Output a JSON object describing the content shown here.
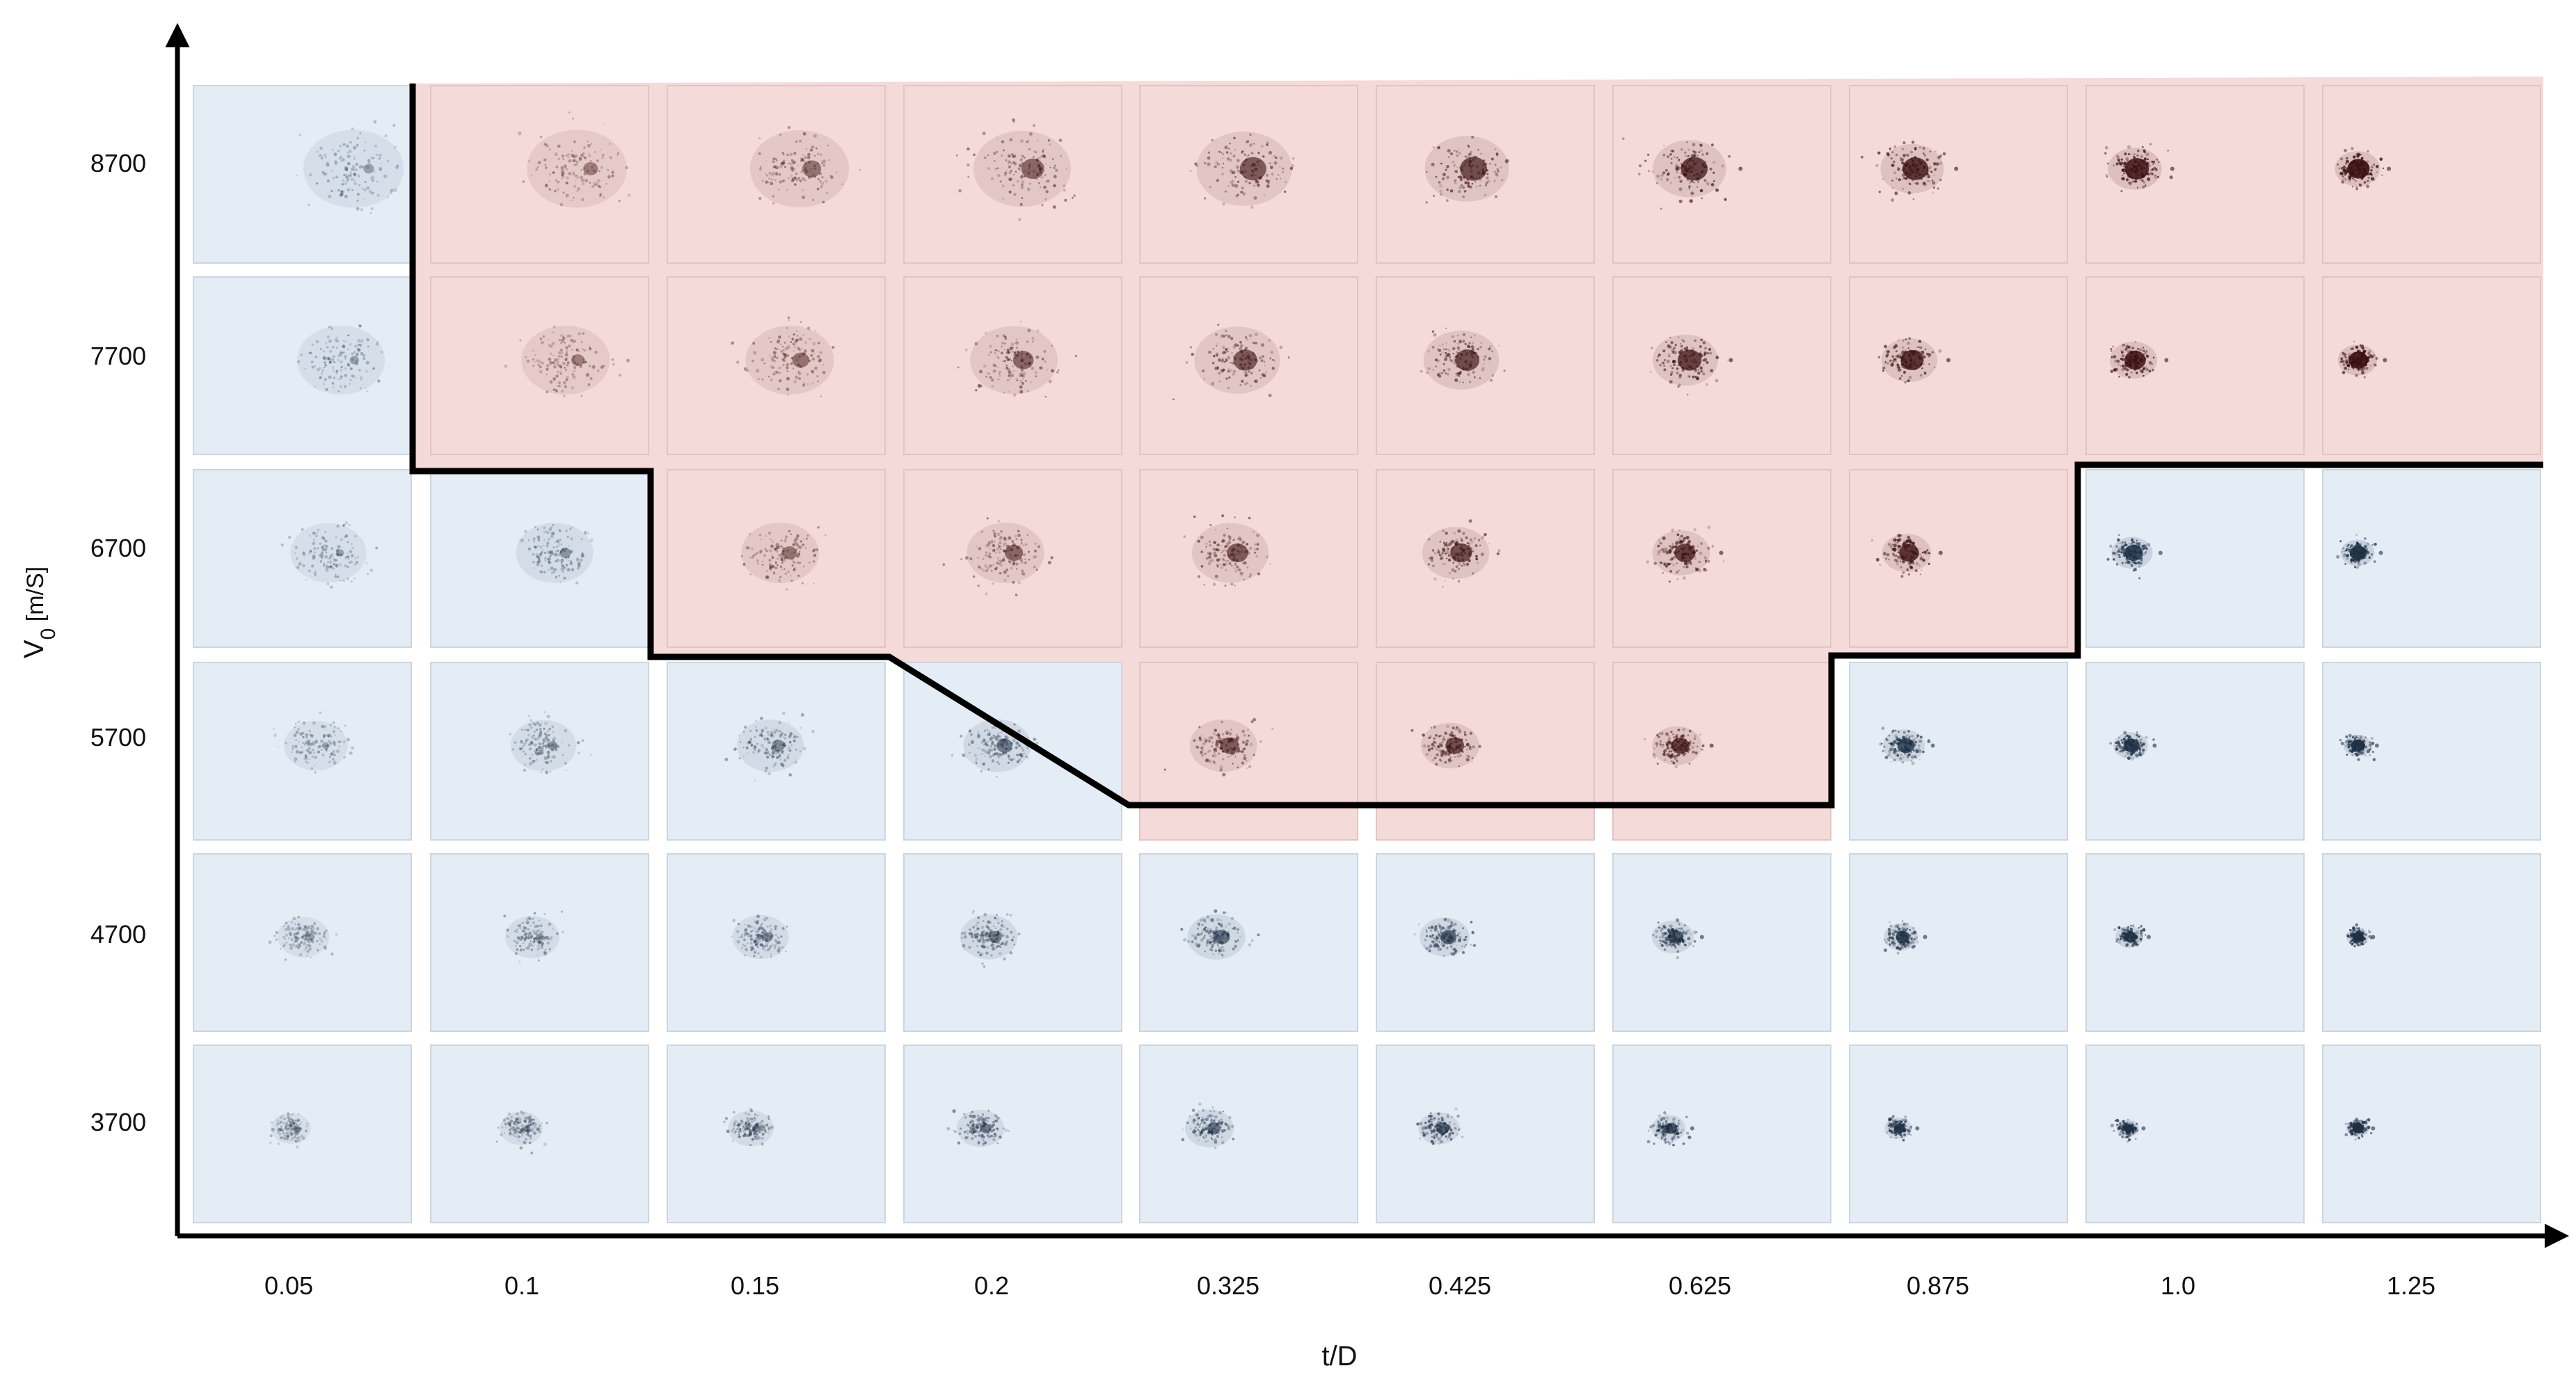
{
  "figure": {
    "x_axis": {
      "label": "t/D",
      "ticks": [
        "0.05",
        "0.1",
        "0.15",
        "0.2",
        "0.325",
        "0.425",
        "0.625",
        "0.875",
        "1.0",
        "1.25"
      ]
    },
    "y_axis": {
      "label_main": "V",
      "label_sub": "0",
      "label_unit": " [m/S]",
      "ticks": [
        "8700",
        "7700",
        "6700",
        "5700",
        "4700",
        "3700"
      ]
    },
    "colors": {
      "blue_region": "#e4ecf6",
      "red_region": "#f5dada",
      "boundary": "#000000",
      "blue_ink": "#1e2f44",
      "red_ink": "#3a1010"
    },
    "cells": [
      {
        "row": "8700",
        "col": "0.05",
        "region": "blue"
      },
      {
        "row": "8700",
        "col": "0.1",
        "region": "red"
      },
      {
        "row": "8700",
        "col": "0.15",
        "region": "red"
      },
      {
        "row": "8700",
        "col": "0.2",
        "region": "red"
      },
      {
        "row": "8700",
        "col": "0.325",
        "region": "red"
      },
      {
        "row": "8700",
        "col": "0.425",
        "region": "red"
      },
      {
        "row": "8700",
        "col": "0.625",
        "region": "red"
      },
      {
        "row": "8700",
        "col": "0.875",
        "region": "red"
      },
      {
        "row": "8700",
        "col": "1.0",
        "region": "red"
      },
      {
        "row": "8700",
        "col": "1.25",
        "region": "red"
      },
      {
        "row": "7700",
        "col": "0.05",
        "region": "blue"
      },
      {
        "row": "7700",
        "col": "0.1",
        "region": "red"
      },
      {
        "row": "7700",
        "col": "0.15",
        "region": "red"
      },
      {
        "row": "7700",
        "col": "0.2",
        "region": "red"
      },
      {
        "row": "7700",
        "col": "0.325",
        "region": "red"
      },
      {
        "row": "7700",
        "col": "0.425",
        "region": "red"
      },
      {
        "row": "7700",
        "col": "0.625",
        "region": "red"
      },
      {
        "row": "7700",
        "col": "0.875",
        "region": "red"
      },
      {
        "row": "7700",
        "col": "1.0",
        "region": "red"
      },
      {
        "row": "7700",
        "col": "1.25",
        "region": "red"
      },
      {
        "row": "6700",
        "col": "0.05",
        "region": "blue"
      },
      {
        "row": "6700",
        "col": "0.1",
        "region": "blue"
      },
      {
        "row": "6700",
        "col": "0.15",
        "region": "red"
      },
      {
        "row": "6700",
        "col": "0.2",
        "region": "red"
      },
      {
        "row": "6700",
        "col": "0.325",
        "region": "red"
      },
      {
        "row": "6700",
        "col": "0.425",
        "region": "red"
      },
      {
        "row": "6700",
        "col": "0.625",
        "region": "red"
      },
      {
        "row": "6700",
        "col": "0.875",
        "region": "red"
      },
      {
        "row": "6700",
        "col": "1.0",
        "region": "blue"
      },
      {
        "row": "6700",
        "col": "1.25",
        "region": "blue"
      },
      {
        "row": "5700",
        "col": "0.05",
        "region": "blue"
      },
      {
        "row": "5700",
        "col": "0.1",
        "region": "blue"
      },
      {
        "row": "5700",
        "col": "0.15",
        "region": "blue"
      },
      {
        "row": "5700",
        "col": "0.2",
        "region": "blue"
      },
      {
        "row": "5700",
        "col": "0.325",
        "region": "red"
      },
      {
        "row": "5700",
        "col": "0.425",
        "region": "red"
      },
      {
        "row": "5700",
        "col": "0.625",
        "region": "red"
      },
      {
        "row": "5700",
        "col": "0.875",
        "region": "blue"
      },
      {
        "row": "5700",
        "col": "1.0",
        "region": "blue"
      },
      {
        "row": "5700",
        "col": "1.25",
        "region": "blue"
      },
      {
        "row": "4700",
        "col": "0.05",
        "region": "blue"
      },
      {
        "row": "4700",
        "col": "0.1",
        "region": "blue"
      },
      {
        "row": "4700",
        "col": "0.15",
        "region": "blue"
      },
      {
        "row": "4700",
        "col": "0.2",
        "region": "blue"
      },
      {
        "row": "4700",
        "col": "0.325",
        "region": "blue"
      },
      {
        "row": "4700",
        "col": "0.425",
        "region": "blue"
      },
      {
        "row": "4700",
        "col": "0.625",
        "region": "blue"
      },
      {
        "row": "4700",
        "col": "0.875",
        "region": "blue"
      },
      {
        "row": "4700",
        "col": "1.0",
        "region": "blue"
      },
      {
        "row": "4700",
        "col": "1.25",
        "region": "blue"
      },
      {
        "row": "3700",
        "col": "0.05",
        "region": "blue"
      },
      {
        "row": "3700",
        "col": "0.1",
        "region": "blue"
      },
      {
        "row": "3700",
        "col": "0.15",
        "region": "blue"
      },
      {
        "row": "3700",
        "col": "0.2",
        "region": "blue"
      },
      {
        "row": "3700",
        "col": "0.325",
        "region": "blue"
      },
      {
        "row": "3700",
        "col": "0.425",
        "region": "blue"
      },
      {
        "row": "3700",
        "col": "0.625",
        "region": "blue"
      },
      {
        "row": "3700",
        "col": "0.875",
        "region": "blue"
      },
      {
        "row": "3700",
        "col": "1.0",
        "region": "blue"
      },
      {
        "row": "3700",
        "col": "1.25",
        "region": "blue"
      }
    ]
  }
}
